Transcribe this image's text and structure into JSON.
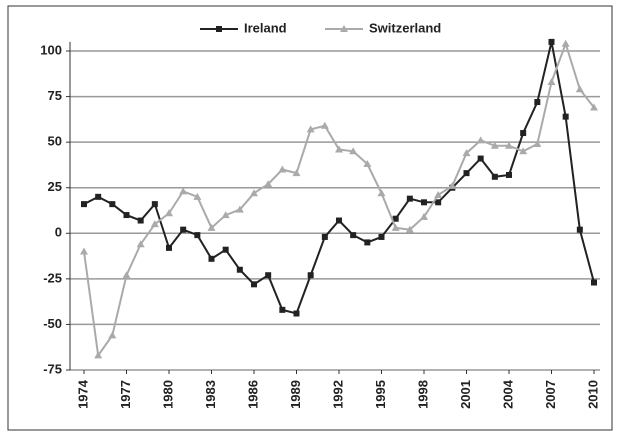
{
  "chart_data": {
    "type": "line",
    "x": [
      1974,
      1975,
      1976,
      1977,
      1978,
      1979,
      1980,
      1981,
      1982,
      1983,
      1984,
      1985,
      1986,
      1987,
      1988,
      1989,
      1990,
      1991,
      1992,
      1993,
      1994,
      1995,
      1996,
      1997,
      1998,
      1999,
      2000,
      2001,
      2002,
      2003,
      2004,
      2005,
      2006,
      2007,
      2008,
      2009,
      2010
    ],
    "series": [
      {
        "name": "Ireland",
        "color": "#222222",
        "marker": "square",
        "values": [
          16,
          20,
          16,
          10,
          7,
          16,
          -8,
          2,
          -1,
          -14,
          -9,
          -20,
          -28,
          -23,
          -42,
          -44,
          -23,
          -2,
          7,
          -1,
          -5,
          -2,
          8,
          19,
          17,
          17,
          25,
          33,
          41,
          31,
          32,
          55,
          72,
          105,
          64,
          2,
          -27
        ]
      },
      {
        "name": "Switzerland",
        "color": "#aaaaaa",
        "marker": "triangle",
        "values": [
          -10,
          -67,
          -56,
          -23,
          -6,
          5,
          11,
          23,
          20,
          3,
          10,
          13,
          22,
          27,
          35,
          33,
          57,
          59,
          46,
          45,
          38,
          22,
          3,
          2,
          9,
          21,
          26,
          44,
          51,
          48,
          48,
          45,
          49,
          83,
          104,
          79,
          69
        ]
      }
    ],
    "xlim": [
      1974,
      2010
    ],
    "xticks": [
      1974,
      1977,
      1980,
      1983,
      1986,
      1989,
      1992,
      1995,
      1998,
      2001,
      2004,
      2007,
      2010
    ],
    "ylim": [
      -75,
      105
    ],
    "yticks": [
      -75,
      -50,
      -25,
      0,
      25,
      50,
      75,
      100
    ],
    "grid": true,
    "legend": "top"
  }
}
